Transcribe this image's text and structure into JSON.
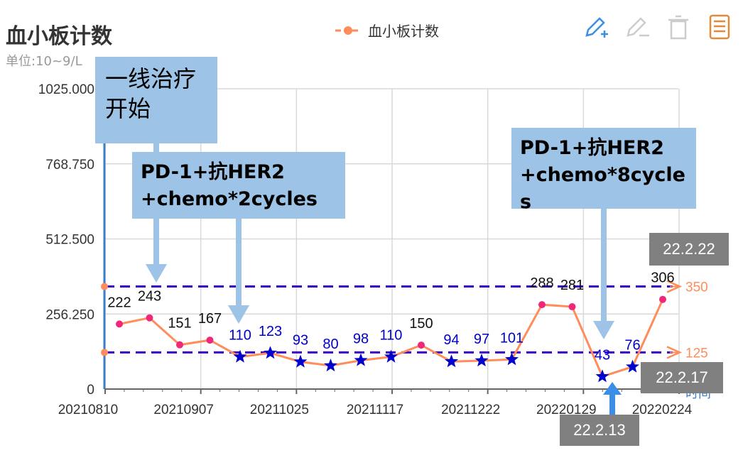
{
  "header": {
    "title": "血小板计数",
    "unit": "单位:10~9/L",
    "legend_label": "血小板计数"
  },
  "toolbar": {
    "icons": [
      "edit-add-icon",
      "edit-icon",
      "delete-icon",
      "report-icon"
    ]
  },
  "colors": {
    "line": "#ff8c5a",
    "point_normal": "#f0287a",
    "point_low": "#0000cc",
    "ref_line": "#3a00cc",
    "annot_fill": "#9dc3e6",
    "grey_fill": "#808080"
  },
  "chart_data": {
    "type": "line",
    "title": "血小板计数",
    "ylabel": "单位:10~9/L",
    "ylim": [
      0,
      1025
    ],
    "y_ticks": [
      "0",
      "256.250",
      "512.500",
      "768.750",
      "1025.000"
    ],
    "x_ticks": [
      "20210810",
      "20210907",
      "20211025",
      "20211117",
      "20211222",
      "20220129",
      "20220224"
    ],
    "x_axis_suffix": "时间",
    "series": [
      {
        "name": "血小板计数",
        "values": [
          222,
          243,
          151,
          167,
          110,
          123,
          93,
          80,
          98,
          110,
          150,
          94,
          97,
          101,
          288,
          281,
          43,
          76,
          306
        ],
        "below_ref": [
          false,
          false,
          false,
          false,
          true,
          true,
          true,
          true,
          true,
          true,
          false,
          true,
          true,
          true,
          false,
          false,
          true,
          true,
          false
        ]
      }
    ],
    "ref_lines": [
      {
        "value": 350,
        "label": "350"
      },
      {
        "value": 125,
        "label": "125"
      }
    ],
    "grid": true
  },
  "annotations": {
    "first_line": "一线治疗\n开始",
    "cycles2": "PD-1+抗HER2\n+chemo*2cycles",
    "cycles8": "PD-1+抗HER2\n+chemo*8cycle\ns",
    "date_2222": "22.2.22",
    "date_2217": "22.2.17",
    "date_2213": "22.2.13"
  }
}
